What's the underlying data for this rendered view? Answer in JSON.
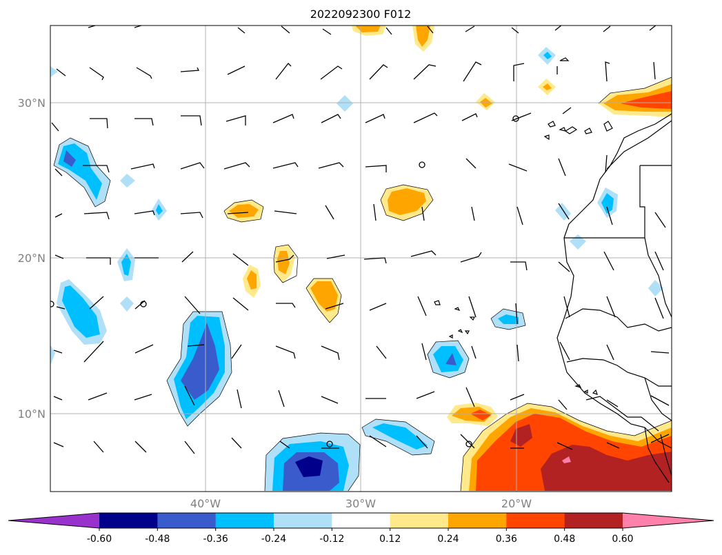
{
  "title": "2022092300 F012",
  "axes": {
    "x_ticks": [
      "40°W",
      "30°W",
      "20°W"
    ],
    "y_ticks": [
      "30°N",
      "20°N",
      "10°N"
    ],
    "lon_range": [
      -50,
      -10
    ],
    "lat_range": [
      5,
      35
    ],
    "x_tick_values": [
      -40,
      -30,
      -20
    ],
    "y_tick_values": [
      30,
      20,
      10
    ],
    "grid": true
  },
  "colorbar": {
    "levels": [
      "-0.60",
      "-0.48",
      "-0.36",
      "-0.24",
      "-0.12",
      "0.12",
      "0.24",
      "0.36",
      "0.48",
      "0.60"
    ],
    "colors": [
      "#9932cc",
      "#00008b",
      "#3a5bcc",
      "#00bfff",
      "#b0e0f8",
      "#ffffff",
      "#ffe98a",
      "#ffa500",
      "#ff4500",
      "#b22222",
      "#ff80aa"
    ],
    "extend": "both"
  },
  "map_colors": {
    "land_outline": "#000000",
    "gridline": "#b0b0b0"
  }
}
